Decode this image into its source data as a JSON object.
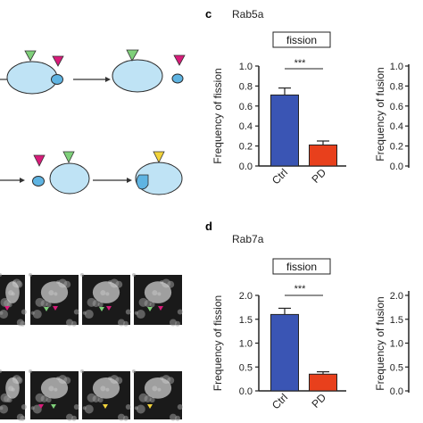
{
  "panels": {
    "c": {
      "letter": "c",
      "protein": "Rab5a",
      "assay_box": "fission",
      "significance": "***",
      "right_ylabel": "Frequency of fusion",
      "right_yticks": [
        "1.0",
        "0.8",
        "0.6",
        "0.4",
        "0.2",
        "0.0"
      ]
    },
    "d": {
      "letter": "d",
      "protein": "Rab7a",
      "assay_box": "fission",
      "significance": "***",
      "right_ylabel": "Frequency of fusion",
      "right_yticks": [
        "2.0",
        "1.5",
        "1.0",
        "0.5",
        "0.0"
      ]
    }
  },
  "colors": {
    "ctrl_bar": "#3a55b4",
    "pd_bar": "#e8401c",
    "cell": "#bfe3f5",
    "cell_edge": "#2b2b2b",
    "arrow_green": "#7fd07a",
    "arrow_magenta": "#d81b7a",
    "arrow_yellow": "#f2d33a"
  },
  "chart_data": [
    {
      "type": "bar",
      "panel": "c",
      "categories": [
        "Ctrl",
        "PD"
      ],
      "values": [
        0.71,
        0.21
      ],
      "errors": [
        0.07,
        0.04
      ],
      "ylabel": "Frequency of fission",
      "ylim": [
        0,
        1.0
      ],
      "yticks": [
        "0.0",
        "0.2",
        "0.4",
        "0.6",
        "0.8",
        "1.0"
      ],
      "colors": [
        "#3a55b4",
        "#e8401c"
      ]
    },
    {
      "type": "bar",
      "panel": "d",
      "categories": [
        "Ctrl",
        "PD"
      ],
      "values": [
        1.6,
        0.35
      ],
      "errors": [
        0.13,
        0.05
      ],
      "ylabel": "Frequency of fission",
      "ylim": [
        0,
        2.0
      ],
      "yticks": [
        "0.0",
        "0.5",
        "1.0",
        "1.5",
        "2.0"
      ],
      "colors": [
        "#3a55b4",
        "#e8401c"
      ]
    }
  ]
}
